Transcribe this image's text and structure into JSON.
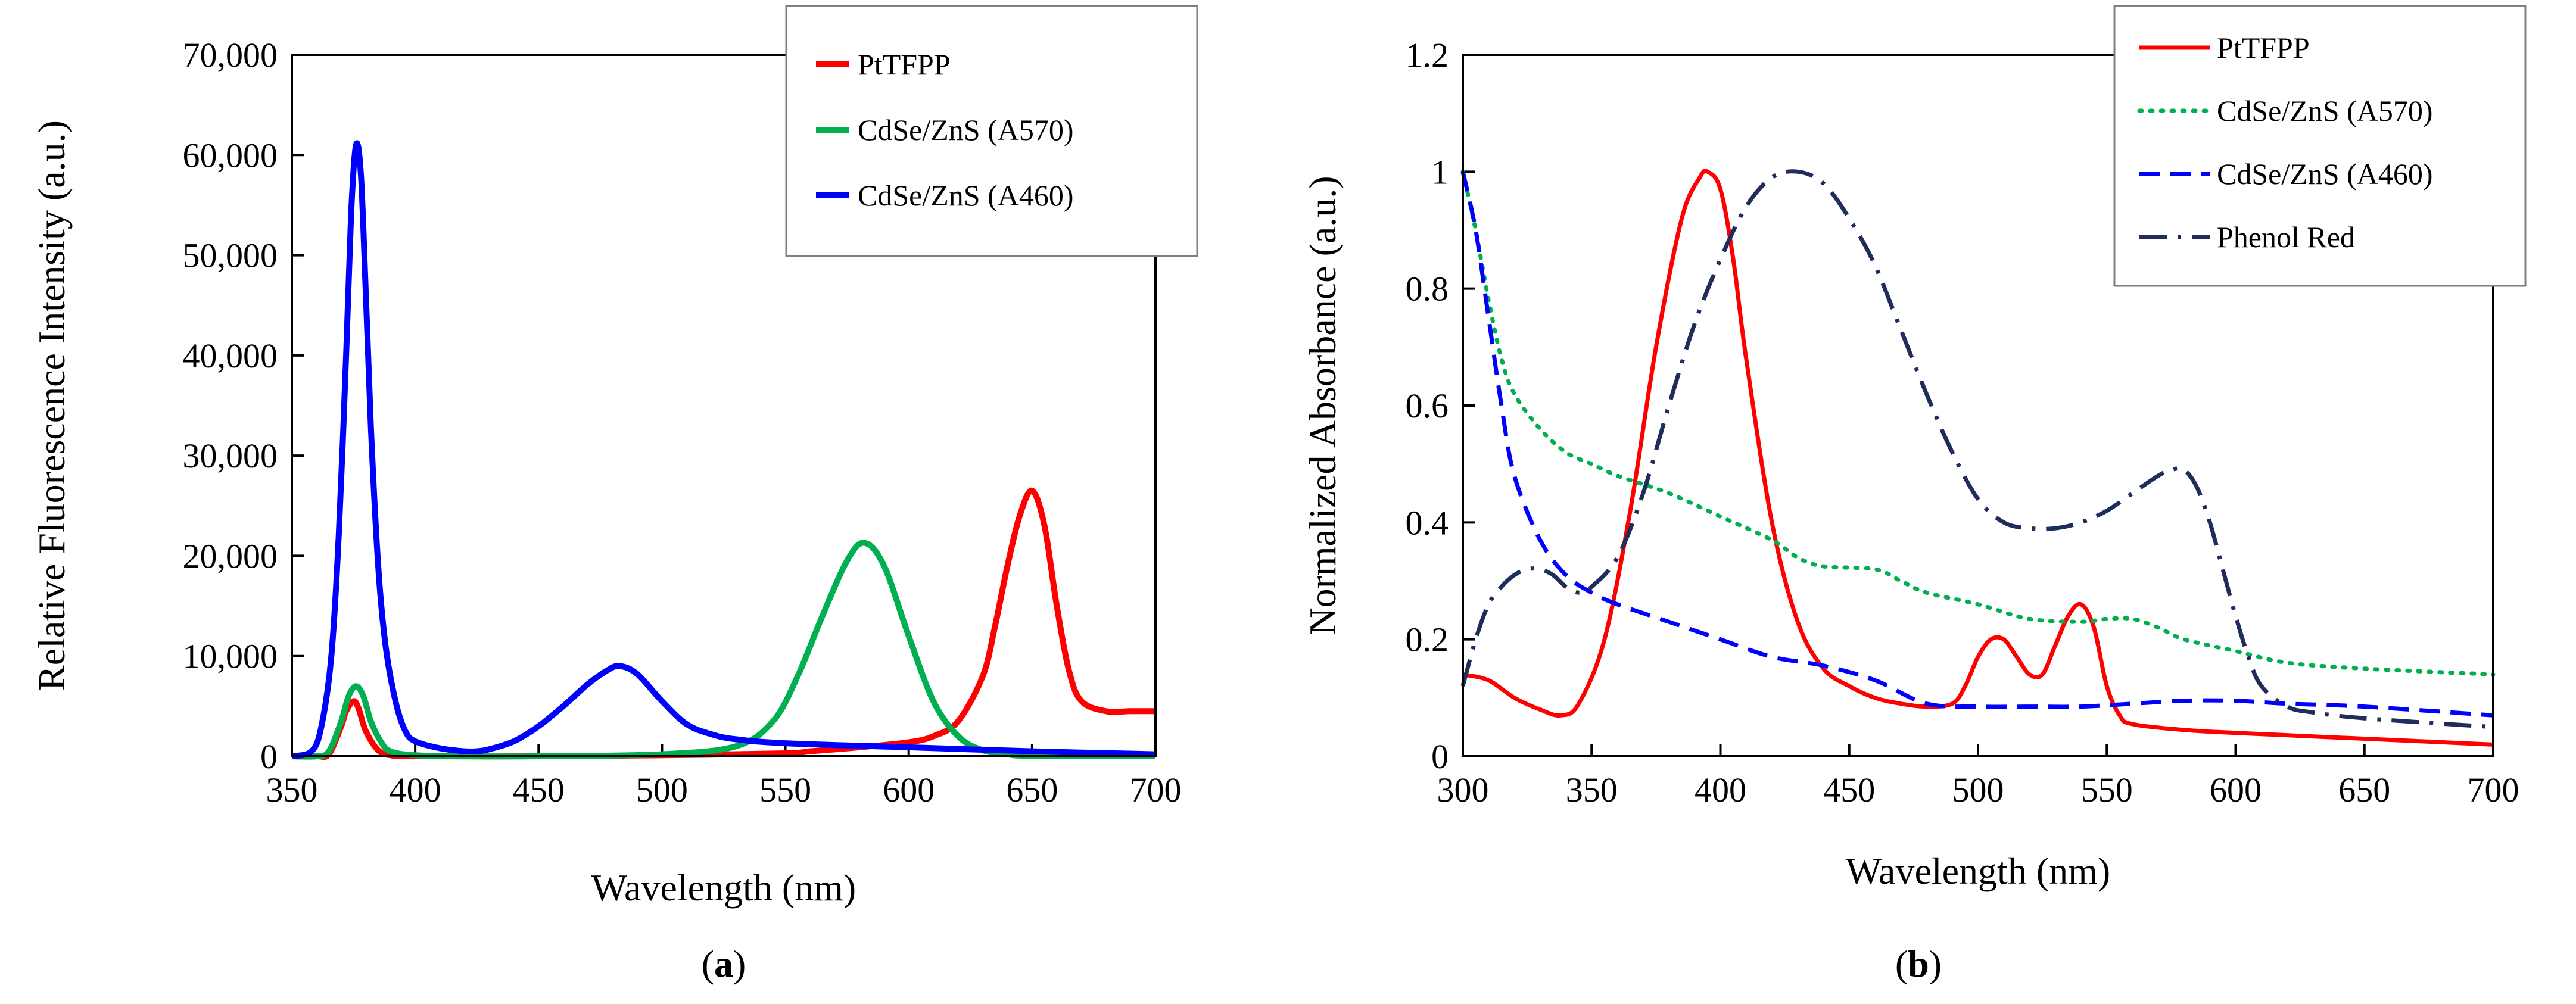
{
  "chart_data": [
    {
      "panel_label": "a",
      "type": "line",
      "xlabel": "Wavelength (nm)",
      "ylabel": "Relative Fluorescence Intensity (a.u.)",
      "xlim": [
        350,
        700
      ],
      "ylim": [
        0,
        70000
      ],
      "xticks": [
        350,
        400,
        450,
        500,
        550,
        600,
        650,
        700
      ],
      "yticks": [
        0,
        10000,
        20000,
        30000,
        40000,
        50000,
        60000,
        70000
      ],
      "xtick_labels": [
        "350",
        "400",
        "450",
        "500",
        "550",
        "600",
        "650",
        "700"
      ],
      "ytick_labels": [
        "0",
        "10,000",
        "20,000",
        "30,000",
        "40,000",
        "50,000",
        "60,000",
        "70,000"
      ],
      "legend_position": "top-right",
      "series": [
        {
          "name": "PtTFPP",
          "color": "#ff0000",
          "dash": "solid",
          "x": [
            350,
            360,
            365,
            370,
            372,
            375,
            377,
            380,
            385,
            390,
            400,
            450,
            500,
            550,
            560,
            580,
            600,
            610,
            620,
            630,
            635,
            640,
            645,
            650,
            655,
            660,
            665,
            670,
            680,
            690,
            700
          ],
          "y": [
            0,
            0,
            200,
            3000,
            4500,
            5500,
            4800,
            2500,
            600,
            100,
            0,
            0,
            100,
            300,
            500,
            900,
            1400,
            2000,
            3500,
            8000,
            13000,
            19000,
            24000,
            26500,
            23000,
            15000,
            8500,
            5500,
            4500,
            4500,
            4500
          ]
        },
        {
          "name": "CdSe/ZnS (A570)",
          "color": "#00b050",
          "dash": "solid",
          "x": [
            350,
            360,
            365,
            370,
            373,
            376,
            379,
            382,
            386,
            390,
            400,
            420,
            450,
            500,
            530,
            545,
            555,
            565,
            575,
            582,
            590,
            600,
            610,
            620,
            630,
            640,
            650,
            700
          ],
          "y": [
            0,
            0,
            500,
            3500,
            6000,
            7000,
            6000,
            3500,
            1500,
            500,
            100,
            0,
            0,
            200,
            1000,
            3500,
            8000,
            14000,
            19500,
            21300,
            19000,
            12000,
            5500,
            2000,
            600,
            200,
            50,
            0
          ]
        },
        {
          "name": "CdSe/ZnS (A460)",
          "color": "#0000ff",
          "dash": "solid",
          "x": [
            350,
            358,
            362,
            366,
            369,
            372,
            374,
            376,
            378,
            380,
            382,
            385,
            388,
            392,
            396,
            400,
            410,
            420,
            425,
            430,
            440,
            450,
            460,
            470,
            478,
            483,
            490,
            500,
            510,
            520,
            530,
            550,
            600,
            650,
            700
          ],
          "y": [
            0,
            500,
            3000,
            10000,
            22000,
            40000,
            54000,
            61000,
            58000,
            46000,
            33000,
            19000,
            11000,
            5500,
            2500,
            1500,
            800,
            500,
            500,
            700,
            1500,
            3000,
            5000,
            7200,
            8600,
            9000,
            8200,
            5500,
            3200,
            2200,
            1700,
            1300,
            900,
            500,
            200
          ]
        }
      ]
    },
    {
      "panel_label": "b",
      "type": "line",
      "xlabel": "Wavelength (nm)",
      "ylabel": "Normalized Absorbance (a.u.)",
      "xlim": [
        300,
        700
      ],
      "ylim": [
        0,
        1.2
      ],
      "xticks": [
        300,
        350,
        400,
        450,
        500,
        550,
        600,
        650,
        700
      ],
      "yticks": [
        0,
        0.2,
        0.4,
        0.6,
        0.8,
        1,
        1.2
      ],
      "xtick_labels": [
        "300",
        "350",
        "400",
        "450",
        "500",
        "550",
        "600",
        "650",
        "700"
      ],
      "ytick_labels": [
        "0",
        "0.2",
        "0.4",
        "0.6",
        "0.8",
        "1",
        "1.2"
      ],
      "legend_position": "top-right",
      "series": [
        {
          "name": "PtTFPP",
          "color": "#ff0000",
          "dash": "solid",
          "x": [
            300,
            310,
            320,
            330,
            338,
            345,
            355,
            365,
            375,
            385,
            392,
            395,
            400,
            405,
            410,
            420,
            430,
            440,
            450,
            460,
            470,
            480,
            490,
            495,
            500,
            505,
            510,
            515,
            520,
            525,
            530,
            535,
            540,
            545,
            550,
            555,
            560,
            580,
            600,
            650,
            700
          ],
          "y": [
            0.14,
            0.13,
            0.1,
            0.08,
            0.07,
            0.09,
            0.2,
            0.42,
            0.7,
            0.92,
            0.99,
            1.0,
            0.97,
            0.85,
            0.68,
            0.4,
            0.23,
            0.15,
            0.12,
            0.1,
            0.09,
            0.085,
            0.09,
            0.12,
            0.17,
            0.2,
            0.2,
            0.17,
            0.14,
            0.14,
            0.19,
            0.24,
            0.26,
            0.22,
            0.12,
            0.07,
            0.055,
            0.045,
            0.04,
            0.03,
            0.02
          ]
        },
        {
          "name": "CdSe/ZnS (A570)",
          "color": "#00b050",
          "dash": "dotted",
          "x": [
            300,
            305,
            310,
            315,
            320,
            330,
            340,
            350,
            360,
            380,
            400,
            420,
            430,
            440,
            460,
            470,
            480,
            500,
            520,
            540,
            550,
            560,
            570,
            580,
            600,
            620,
            650,
            700
          ],
          "y": [
            1.0,
            0.9,
            0.78,
            0.68,
            0.62,
            0.56,
            0.52,
            0.5,
            0.48,
            0.45,
            0.41,
            0.37,
            0.34,
            0.325,
            0.32,
            0.3,
            0.28,
            0.26,
            0.235,
            0.23,
            0.235,
            0.235,
            0.22,
            0.2,
            0.18,
            0.16,
            0.15,
            0.14
          ]
        },
        {
          "name": "CdSe/ZnS (A460)",
          "color": "#0000ff",
          "dash": "dashed",
          "x": [
            300,
            305,
            310,
            315,
            320,
            330,
            340,
            350,
            360,
            380,
            400,
            420,
            440,
            460,
            480,
            500,
            520,
            540,
            560,
            580,
            600,
            620,
            650,
            700
          ],
          "y": [
            1.0,
            0.9,
            0.75,
            0.6,
            0.48,
            0.37,
            0.31,
            0.28,
            0.26,
            0.23,
            0.2,
            0.17,
            0.155,
            0.13,
            0.09,
            0.085,
            0.085,
            0.085,
            0.09,
            0.095,
            0.095,
            0.09,
            0.085,
            0.07
          ]
        },
        {
          "name": "Phenol Red",
          "color": "#1f2d5a",
          "dash": "dashdot",
          "x": [
            300,
            305,
            310,
            315,
            320,
            325,
            330,
            335,
            340,
            345,
            350,
            360,
            370,
            380,
            390,
            400,
            410,
            420,
            430,
            440,
            450,
            460,
            470,
            480,
            490,
            500,
            510,
            520,
            530,
            540,
            550,
            560,
            570,
            575,
            580,
            585,
            590,
            595,
            600,
            605,
            610,
            620,
            630,
            650,
            700
          ],
          "y": [
            0.12,
            0.2,
            0.26,
            0.29,
            0.31,
            0.32,
            0.32,
            0.31,
            0.29,
            0.28,
            0.29,
            0.34,
            0.45,
            0.6,
            0.74,
            0.85,
            0.94,
            0.99,
            1.0,
            0.98,
            0.92,
            0.84,
            0.73,
            0.62,
            0.52,
            0.44,
            0.4,
            0.39,
            0.39,
            0.4,
            0.42,
            0.45,
            0.48,
            0.49,
            0.49,
            0.46,
            0.4,
            0.32,
            0.24,
            0.17,
            0.12,
            0.085,
            0.075,
            0.065,
            0.05
          ]
        }
      ]
    }
  ]
}
